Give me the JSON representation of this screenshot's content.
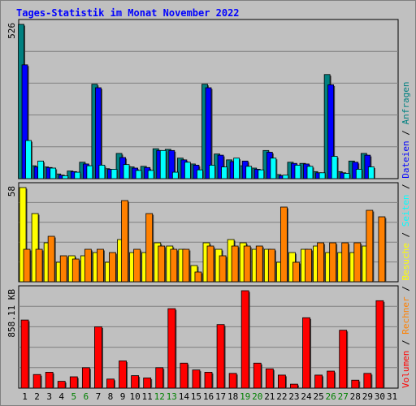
{
  "page": {
    "title": "Tages-Statistik im Monat November 2022"
  },
  "colors": {
    "anfragen": "#008080",
    "dateien": "#0000ff",
    "seiten": "#00ffff",
    "besuche": "#ffff00",
    "rechner": "#ff8000",
    "volumen": "#ff0000",
    "weekend": "#008000",
    "panel_bg": "#c0c0c0",
    "grid": "#808080"
  },
  "chart_data": {
    "type": "bar",
    "title": "Tages-Statistik im Monat November 2022",
    "categories": [
      "1",
      "2",
      "3",
      "4",
      "5",
      "6",
      "7",
      "8",
      "9",
      "10",
      "11",
      "12",
      "13",
      "14",
      "15",
      "16",
      "17",
      "18",
      "19",
      "20",
      "21",
      "22",
      "23",
      "24",
      "25",
      "26",
      "27",
      "28",
      "29",
      "30",
      "31"
    ],
    "weekend_days": [
      "5",
      "6",
      "12",
      "13",
      "19",
      "20",
      "26",
      "27"
    ],
    "panels": [
      {
        "name": "top",
        "max_label": "526",
        "max": 526,
        "series": [
          {
            "name": "Anfragen",
            "values": [
              526,
              44,
              40,
              16,
              26,
              56,
              322,
              34,
              86,
              40,
              42,
              102,
              100,
              70,
              50,
              322,
              84,
              64,
              44,
              36,
              96,
              14,
              56,
              52,
              24,
              355,
              24,
              60,
              86,
              0,
              0
            ]
          },
          {
            "name": "Dateien",
            "values": [
              388,
              40,
              38,
              12,
              24,
              50,
              310,
              32,
              72,
              36,
              38,
              96,
              96,
              64,
              46,
              310,
              80,
              58,
              60,
              32,
              90,
              10,
              52,
              50,
              20,
              320,
              20,
              56,
              80,
              0,
              0
            ]
          },
          {
            "name": "Seiten",
            "values": [
              130,
              60,
              36,
              10,
              22,
              44,
              46,
              32,
              48,
              28,
              28,
              96,
              22,
              56,
              30,
              46,
              40,
              70,
              42,
              30,
              70,
              12,
              46,
              42,
              20,
              76,
              18,
              32,
              40,
              0,
              0
            ]
          }
        ]
      },
      {
        "name": "middle",
        "max_label": "58",
        "max": 58,
        "series": [
          {
            "name": "Besuche",
            "values": [
              58,
              42,
              24,
              12,
              16,
              16,
              18,
              12,
              26,
              18,
              18,
              24,
              22,
              20,
              10,
              24,
              20,
              26,
              24,
              20,
              20,
              12,
              18,
              20,
              22,
              18,
              18,
              18,
              22,
              0,
              0
            ]
          },
          {
            "name": "Rechner",
            "values": [
              20,
              20,
              28,
              16,
              14,
              20,
              20,
              18,
              50,
              20,
              42,
              22,
              20,
              20,
              6,
              22,
              16,
              22,
              22,
              22,
              20,
              46,
              12,
              20,
              24,
              24,
              24,
              24,
              44,
              40,
              0
            ]
          }
        ]
      },
      {
        "name": "bottom",
        "max_label": "858.11 KB",
        "max": 858.11,
        "series": [
          {
            "name": "Volumen",
            "values": [
              600,
              120,
              140,
              60,
              100,
              180,
              540,
              80,
              240,
              110,
              90,
              180,
              700,
              220,
              160,
              140,
              560,
              130,
              858.11,
              220,
              170,
              115,
              35,
              620,
              115,
              150,
              510,
              70,
              130,
              770,
              0
            ]
          }
        ]
      }
    ],
    "legend_right": [
      "Anfragen",
      "/",
      "Dateien",
      "/",
      "Seiten",
      "/",
      "Besuche",
      "/",
      "Rechner",
      "/",
      "Volumen"
    ]
  }
}
